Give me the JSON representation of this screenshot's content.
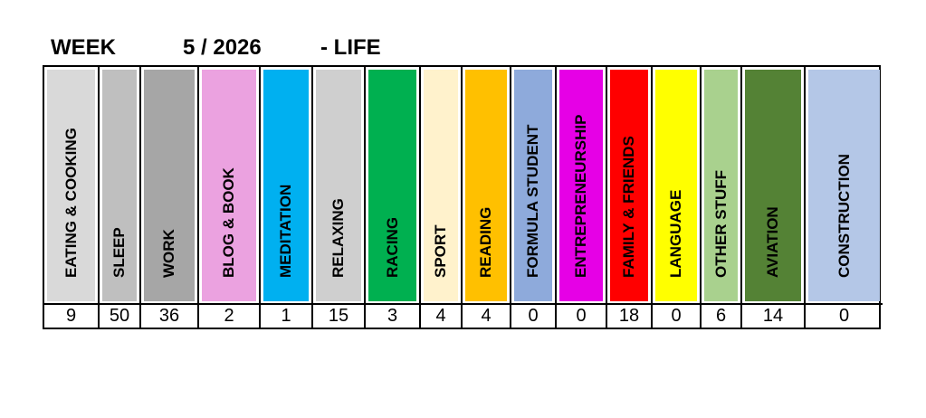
{
  "header": {
    "week_label": "WEEK",
    "week_value": "5 / 2026",
    "category": "- LIFE"
  },
  "activities": [
    {
      "label": "EATING & COOKING",
      "hours": "9",
      "color": "#d9d9d9"
    },
    {
      "label": "SLEEP",
      "hours": "50",
      "color": "#bfbfbf"
    },
    {
      "label": "WORK",
      "hours": "36",
      "color": "#a6a6a6"
    },
    {
      "label": "BLOG & BOOK",
      "hours": "2",
      "color": "#eba2e0"
    },
    {
      "label": "MEDITATION",
      "hours": "1",
      "color": "#00b0f0"
    },
    {
      "label": "RELAXING",
      "hours": "15",
      "color": "#cfcfcf"
    },
    {
      "label": "RACING",
      "hours": "3",
      "color": "#00b050"
    },
    {
      "label": "SPORT",
      "hours": "4",
      "color": "#fff2cc"
    },
    {
      "label": "READING",
      "hours": "4",
      "color": "#ffc000"
    },
    {
      "label": "FORMULA STUDENT",
      "hours": "0",
      "color": "#8eaadb"
    },
    {
      "label": "ENTREPRENEURSHIP",
      "hours": "0",
      "color": "#e600e6"
    },
    {
      "label": "FAMILY & FRIENDS",
      "hours": "18",
      "color": "#ff0000"
    },
    {
      "label": "LANGUAGE",
      "hours": "0",
      "color": "#ffff00"
    },
    {
      "label": "OTHER STUFF",
      "hours": "6",
      "color": "#a9d18e"
    },
    {
      "label": "AVIATION",
      "hours": "14",
      "color": "#548235"
    },
    {
      "label": "CONSTRUCTION",
      "hours": "0",
      "color": "#b4c7e7"
    }
  ]
}
